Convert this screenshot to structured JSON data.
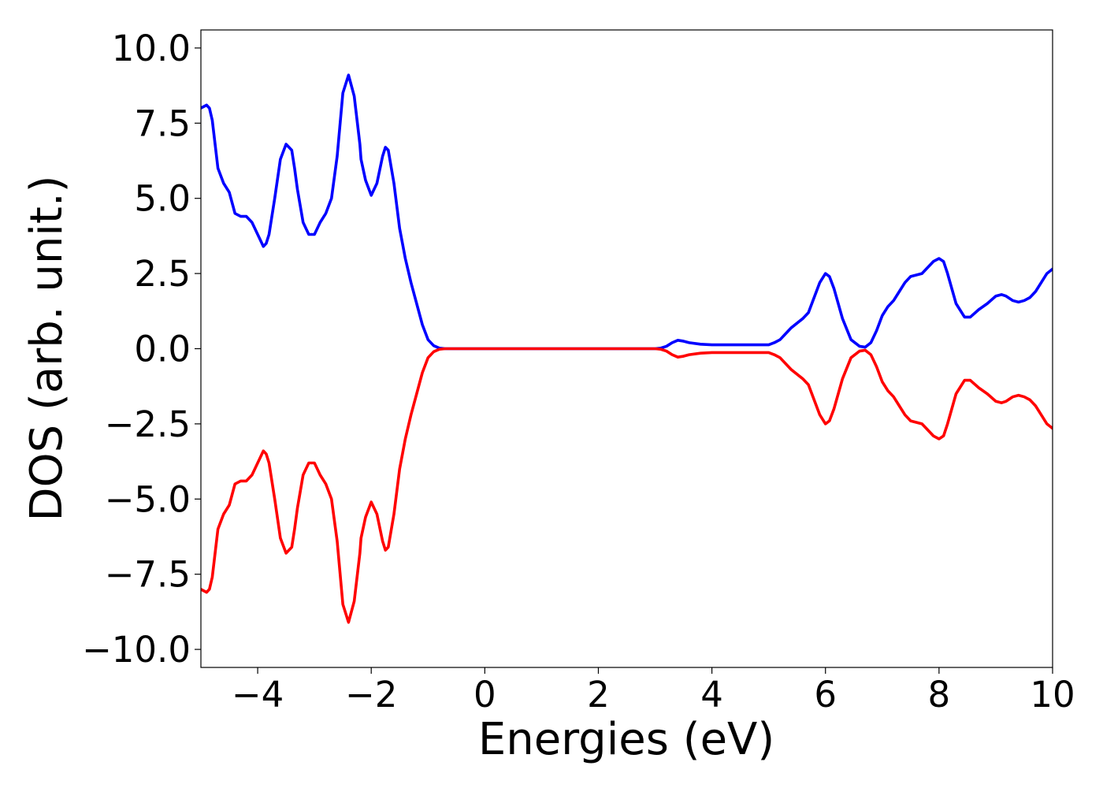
{
  "chart_data": {
    "type": "line",
    "title": "",
    "xlabel": "Energies (eV)",
    "ylabel": "DOS (arb. unit.)",
    "xlim": [
      -5,
      10
    ],
    "ylim": [
      -10.6,
      10.6
    ],
    "xticks": [
      -4,
      -2,
      0,
      2,
      4,
      6,
      8,
      10
    ],
    "xtick_labels": [
      "−4",
      "−2",
      "0",
      "2",
      "4",
      "6",
      "8",
      "10"
    ],
    "yticks": [
      10.0,
      7.5,
      5.0,
      2.5,
      0.0,
      -2.5,
      -5.0,
      -7.5,
      -10.0
    ],
    "ytick_labels": [
      "10.0",
      "7.5",
      "5.0",
      "2.5",
      "0.0",
      "−2.5",
      "−5.0",
      "−7.5",
      "−10.0"
    ],
    "grid": false,
    "legend": "none",
    "series": [
      {
        "color": "#0000ff",
        "x": [
          -5.0,
          -4.9,
          -4.85,
          -4.8,
          -4.7,
          -4.6,
          -4.5,
          -4.4,
          -4.3,
          -4.2,
          -4.1,
          -4.0,
          -3.9,
          -3.85,
          -3.8,
          -3.7,
          -3.6,
          -3.5,
          -3.4,
          -3.35,
          -3.3,
          -3.2,
          -3.1,
          -3.0,
          -2.95,
          -2.9,
          -2.8,
          -2.7,
          -2.6,
          -2.5,
          -2.4,
          -2.3,
          -2.2,
          -2.18,
          -2.1,
          -2.0,
          -1.9,
          -1.8,
          -1.75,
          -1.7,
          -1.6,
          -1.5,
          -1.45,
          -1.4,
          -1.3,
          -1.2,
          -1.1,
          -1.0,
          -0.9,
          -0.8,
          -0.7,
          -0.6,
          -0.5,
          -0.3,
          0.0,
          1.0,
          2.0,
          3.0,
          3.1,
          3.2,
          3.3,
          3.4,
          3.5,
          3.6,
          3.8,
          4.0,
          4.5,
          5.0,
          5.1,
          5.2,
          5.3,
          5.4,
          5.5,
          5.6,
          5.7,
          5.8,
          5.9,
          6.0,
          6.07,
          6.15,
          6.3,
          6.45,
          6.6,
          6.7,
          6.8,
          6.9,
          7.0,
          7.1,
          7.2,
          7.3,
          7.4,
          7.5,
          7.6,
          7.7,
          7.8,
          7.9,
          8.0,
          8.08,
          8.15,
          8.3,
          8.45,
          8.55,
          8.7,
          8.85,
          9.0,
          9.1,
          9.18,
          9.3,
          9.4,
          9.5,
          9.6,
          9.7,
          9.8,
          9.9,
          10.0
        ],
        "y": [
          8.0,
          8.1,
          8.0,
          7.6,
          6.0,
          5.5,
          5.2,
          4.5,
          4.4,
          4.4,
          4.2,
          3.8,
          3.4,
          3.5,
          3.8,
          5.0,
          6.3,
          6.8,
          6.6,
          6.0,
          5.3,
          4.2,
          3.8,
          3.8,
          4.0,
          4.2,
          4.5,
          5.0,
          6.4,
          8.5,
          9.1,
          8.4,
          6.8,
          6.3,
          5.6,
          5.1,
          5.5,
          6.4,
          6.7,
          6.6,
          5.5,
          4.0,
          3.5,
          3.0,
          2.2,
          1.5,
          0.8,
          0.3,
          0.1,
          0.02,
          0.0,
          0.0,
          0.0,
          0.0,
          0.0,
          0.0,
          0.0,
          0.0,
          0.02,
          0.08,
          0.2,
          0.28,
          0.25,
          0.2,
          0.15,
          0.13,
          0.13,
          0.13,
          0.2,
          0.3,
          0.5,
          0.7,
          0.85,
          1.0,
          1.2,
          1.7,
          2.2,
          2.5,
          2.4,
          2.0,
          1.0,
          0.3,
          0.08,
          0.05,
          0.2,
          0.6,
          1.1,
          1.4,
          1.6,
          1.9,
          2.2,
          2.4,
          2.45,
          2.5,
          2.7,
          2.9,
          3.0,
          2.9,
          2.5,
          1.5,
          1.05,
          1.05,
          1.3,
          1.5,
          1.75,
          1.8,
          1.75,
          1.6,
          1.55,
          1.6,
          1.7,
          1.9,
          2.2,
          2.5,
          2.65
        ]
      },
      {
        "color": "#ff0000",
        "x": [
          -5.0,
          -4.9,
          -4.85,
          -4.8,
          -4.7,
          -4.6,
          -4.5,
          -4.4,
          -4.3,
          -4.2,
          -4.1,
          -4.0,
          -3.9,
          -3.85,
          -3.8,
          -3.7,
          -3.6,
          -3.5,
          -3.4,
          -3.35,
          -3.3,
          -3.2,
          -3.1,
          -3.0,
          -2.95,
          -2.9,
          -2.8,
          -2.7,
          -2.6,
          -2.5,
          -2.4,
          -2.3,
          -2.2,
          -2.18,
          -2.1,
          -2.0,
          -1.9,
          -1.8,
          -1.75,
          -1.7,
          -1.6,
          -1.5,
          -1.45,
          -1.4,
          -1.3,
          -1.2,
          -1.1,
          -1.0,
          -0.9,
          -0.8,
          -0.7,
          -0.6,
          -0.5,
          -0.3,
          0.0,
          1.0,
          2.0,
          3.0,
          3.1,
          3.2,
          3.3,
          3.4,
          3.5,
          3.6,
          3.8,
          4.0,
          4.5,
          5.0,
          5.1,
          5.2,
          5.3,
          5.4,
          5.5,
          5.6,
          5.7,
          5.8,
          5.9,
          6.0,
          6.07,
          6.15,
          6.3,
          6.45,
          6.6,
          6.7,
          6.8,
          6.9,
          7.0,
          7.1,
          7.2,
          7.3,
          7.4,
          7.5,
          7.6,
          7.7,
          7.8,
          7.9,
          8.0,
          8.08,
          8.15,
          8.3,
          8.45,
          8.55,
          8.7,
          8.85,
          9.0,
          9.1,
          9.18,
          9.3,
          9.4,
          9.5,
          9.6,
          9.7,
          9.8,
          9.9,
          10.0
        ],
        "y": [
          -8.0,
          -8.1,
          -8.0,
          -7.6,
          -6.0,
          -5.5,
          -5.2,
          -4.5,
          -4.4,
          -4.4,
          -4.2,
          -3.8,
          -3.4,
          -3.5,
          -3.8,
          -5.0,
          -6.3,
          -6.8,
          -6.6,
          -6.0,
          -5.3,
          -4.2,
          -3.8,
          -3.8,
          -4.0,
          -4.2,
          -4.5,
          -5.0,
          -6.4,
          -8.5,
          -9.1,
          -8.4,
          -6.8,
          -6.3,
          -5.6,
          -5.1,
          -5.5,
          -6.4,
          -6.7,
          -6.6,
          -5.5,
          -4.0,
          -3.5,
          -3.0,
          -2.2,
          -1.5,
          -0.8,
          -0.3,
          -0.1,
          -0.02,
          0.0,
          0.0,
          0.0,
          0.0,
          0.0,
          0.0,
          0.0,
          0.0,
          -0.02,
          -0.08,
          -0.2,
          -0.28,
          -0.25,
          -0.2,
          -0.15,
          -0.13,
          -0.13,
          -0.13,
          -0.2,
          -0.3,
          -0.5,
          -0.7,
          -0.85,
          -1.0,
          -1.2,
          -1.7,
          -2.2,
          -2.5,
          -2.4,
          -2.0,
          -1.0,
          -0.3,
          -0.08,
          -0.05,
          -0.2,
          -0.6,
          -1.1,
          -1.4,
          -1.6,
          -1.9,
          -2.2,
          -2.4,
          -2.45,
          -2.5,
          -2.7,
          -2.9,
          -3.0,
          -2.9,
          -2.5,
          -1.5,
          -1.05,
          -1.05,
          -1.3,
          -1.5,
          -1.75,
          -1.8,
          -1.75,
          -1.6,
          -1.55,
          -1.6,
          -1.7,
          -1.9,
          -2.2,
          -2.5,
          -2.65
        ]
      }
    ]
  }
}
